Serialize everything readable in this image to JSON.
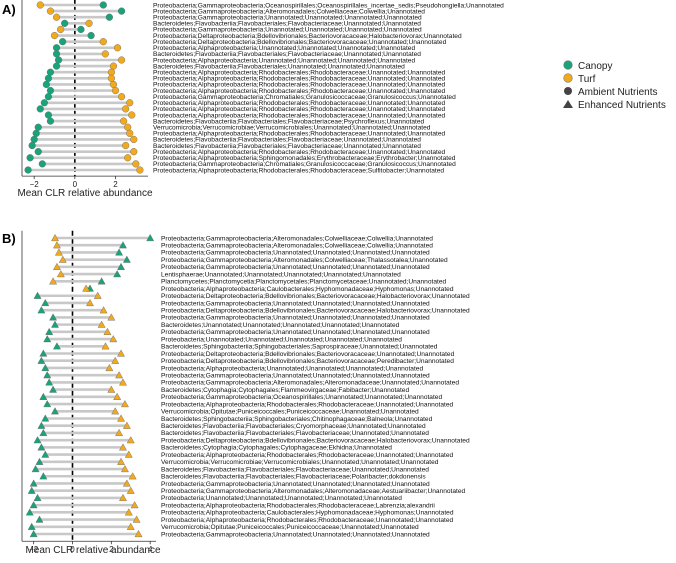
{
  "chart_data": [
    {
      "panel": "A)",
      "type": "dumbbell",
      "xlabel": "Mean CLR relative abundance",
      "xticks": [
        -2,
        0,
        2
      ],
      "xlim": [
        -2.6,
        3.6
      ],
      "reference_line_x": 0,
      "shape": "circle",
      "categories": [
        "Proteobacteria;Gammaproteobacteria;Oceanospirillales;Oceanospirillales_incertae_sedis;Pseudohongiella;Unannotated",
        "Proteobacteria;Gammaproteobacteria;Alteromonadales;Colwelliaceae;Colwellia;Unannotated",
        "Proteobacteria;Gammaproteobacteria;Unannotated;Unannotated;Unannotated;Unannotated",
        "Bacteroidetes;Flavobacteriia;Flavobacteriales;Flavobacteriaceae;Unannotated;Unannotated",
        "Proteobacteria;Gammaproteobacteria;Unannotated;Unannotated;Unannotated;Unannotated",
        "Proteobacteria;Deltaproteobacteria;Bdellovibrionales;Bacteriovoracaceae;Halobacteriovorax;Unannotated",
        "Proteobacteria;Deltaproteobacteria;Bdellovibrionales;Bacteriovoracaceae;Unannotated;Unannotated",
        "Proteobacteria;Alphaproteobacteria;Unannotated;Unannotated;Unannotated;Unannotated",
        "Bacteroidetes;Flavobacteriia;Flavobacteriales;Flavobacteriaceae;Unannotated;Unannotated",
        "Proteobacteria;Alphaproteobacteria;Unannotated;Unannotated;Unannotated;Unannotated",
        "Bacteroidetes;Flavobacteriia;Flavobacteriales;Unannotated;Unannotated;Unannotated",
        "Proteobacteria;Alphaproteobacteria;Rhodobacterales;Rhodobacteraceae;Unannotated;Unannotated",
        "Proteobacteria;Alphaproteobacteria;Rhodobacterales;Rhodobacteraceae;Unannotated;Unannotated",
        "Proteobacteria;Alphaproteobacteria;Rhodobacterales;Rhodobacteraceae;Unannotated;Unannotated",
        "Proteobacteria;Alphaproteobacteria;Rhodobacterales;Rhodobacteraceae;Unannotated;Unannotated",
        "Proteobacteria;Gammaproteobacteria;Chromatiales;Granulosicoccaceae;Granulosicoccus;Unannotated",
        "Proteobacteria;Alphaproteobacteria;Rhodobacterales;Rhodobacteraceae;Unannotated;Unannotated",
        "Proteobacteria;Alphaproteobacteria;Rhodobacterales;Rhodobacteraceae;Unannotated;Unannotated",
        "Proteobacteria;Alphaproteobacteria;Rhodobacterales;Rhodobacteraceae;Unannotated;Unannotated",
        "Bacteroidetes;Flavobacteriia;Flavobacteriales;Flavobacteriaceae;Psychroflexus;Unannotated",
        "Verrucomicrobia;Verrucomicrobiae;Verrucomicrobiales;Unannotated;Unannotated;Unannotated",
        "Proteobacteria;Alphaproteobacteria;Rhodobacterales;Rhodobacteraceae;Unannotated;Unannotated",
        "Bacteroidetes;Flavobacteriia;Flavobacteriales;Flavobacteriaceae;Unannotated;Unannotated",
        "Bacteroidetes;Flavobacteriia;Flavobacteriales;Flavobacteriaceae;Unannotated;Unannotated",
        "Proteobacteria;Alphaproteobacteria;Rhodobacterales;Rhodobacteraceae;Unannotated;Unannotated",
        "Proteobacteria;Alphaproteobacteria;Sphingomonadales;Erythrobacteraceae;Erythrobacter;Unannotated",
        "Proteobacteria;Gammaproteobacteria;Chromatiales;Granulosicoccaceae;Granulosicoccus;Unannotated",
        "Proteobacteria;Alphaproteobacteria;Rhodobacterales;Rhodobacteraceae;Sulfitobacter;Unannotated"
      ],
      "series": [
        {
          "name": "Canopy",
          "values": [
            1.4,
            2.3,
            1.7,
            -0.5,
            0.3,
            0.8,
            -0.6,
            -0.9,
            -0.9,
            -0.8,
            -0.9,
            -1.2,
            -1.3,
            -1.4,
            -1.2,
            -1.3,
            -1.5,
            -1.7,
            -1.3,
            -1.2,
            -1.8,
            -1.9,
            -2.0,
            -2.1,
            -1.8,
            -2.2,
            -1.6,
            -2.3
          ]
        },
        {
          "name": "Turf",
          "values": [
            -1.7,
            -1.2,
            -0.9,
            0.7,
            -0.7,
            -1.0,
            1.4,
            2.1,
            1.5,
            2.3,
            1.9,
            1.8,
            1.8,
            1.9,
            2.0,
            2.3,
            2.7,
            2.5,
            2.8,
            2.4,
            2.6,
            2.7,
            2.9,
            2.5,
            2.9,
            2.6,
            3.0,
            3.2
          ]
        }
      ]
    },
    {
      "panel": "B)",
      "type": "dumbbell",
      "xlabel": "Mean CLR relative abundance",
      "xticks": [
        -2,
        0,
        2,
        4
      ],
      "xlim": [
        -2.6,
        4.3
      ],
      "reference_line_x": 0,
      "shape": "triangle",
      "categories": [
        "Proteobacteria;Gammaproteobacteria;Alteromonadales;Colwelliaceae;Colwellia;Unannotated",
        "Proteobacteria;Gammaproteobacteria;Alteromonadales;Colwelliaceae;Colwellia;Unannotated",
        "Proteobacteria;Gammaproteobacteria;Unannotated;Unannotated;Unannotated;Unannotated",
        "Proteobacteria;Gammaproteobacteria;Alteromonadales;Colwelliaceae;Thalassotalea;Unannotated",
        "Proteobacteria;Gammaproteobacteria;Unannotated;Unannotated;Unannotated;Unannotated",
        "Lentisphaerae;Unannotated;Unannotated;Unannotated;Unannotated;Unannotated",
        "Planctomycetes;Planctomycetia;Planctomycetales;Planctomycetaceae;Unannotated;Unannotated",
        "Proteobacteria;Alphaproteobacteria;Caulobacterales;Hyphomonadaceae;Hyphomonas;Unannotated",
        "Proteobacteria;Deltaproteobacteria;Bdellovibrionales;Bacteriovoracaceae;Halobacteriovorax;Unannotated",
        "Proteobacteria;Gammaproteobacteria;Unannotated;Unannotated;Unannotated;Unannotated",
        "Proteobacteria;Deltaproteobacteria;Bdellovibrionales;Bacteriovoracaceae;Halobacteriovorax;Unannotated",
        "Proteobacteria;Gammaproteobacteria;Unannotated;Unannotated;Unannotated;Unannotated",
        "Bacteroidetes;Unannotated;Unannotated;Unannotated;Unannotated;Unannotated",
        "Proteobacteria;Gammaproteobacteria;Unannotated;Unannotated;Unannotated;Unannotated",
        "Proteobacteria;Unannotated;Unannotated;Unannotated;Unannotated;Unannotated",
        "Bacteroidetes;Sphingobacteriia;Sphingobacteriales;Saprospiraceae;Unannotated;Unannotated",
        "Proteobacteria;Deltaproteobacteria;Bdellovibrionales;Bacteriovoracaceae;Unannotated;Unannotated",
        "Proteobacteria;Deltaproteobacteria;Bdellovibrionales;Bacteriovoracaceae;Peredibacter;Unannotated",
        "Proteobacteria;Alphaproteobacteria;Unannotated;Unannotated;Unannotated;Unannotated",
        "Proteobacteria;Gammaproteobacteria;Unannotated;Unannotated;Unannotated;Unannotated",
        "Proteobacteria;Gammaproteobacteria;Alteromonadales;Alteromonadaceae;Unannotated;Unannotated",
        "Bacteroidetes;Cytophagia;Cytophagales;Flammeovirgaceae;Fabibacter;Unannotated",
        "Proteobacteria;Gammaproteobacteria;Oceanospirillales;Unannotated;Unannotated;Unannotated",
        "Proteobacteria;Alphaproteobacteria;Rhodobacterales;Rhodobacteraceae;Unannotated;Unannotated",
        "Verrucomicrobia;Opitutae;Puniceicoccales;Puniceicoccaceae;Unannotated;Unannotated",
        "Bacteroidetes;Sphingobacteriia;Sphingobacteriales;Chitinophagaceae;Balneola;Unannotated",
        "Bacteroidetes;Flavobacteriia;Flavobacteriales;Cryomorphaceae;Unannotated;Unannotated",
        "Bacteroidetes;Flavobacteriia;Flavobacteriales;Flavobacteriaceae;Unannotated;Unannotated",
        "Proteobacteria;Deltaproteobacteria;Bdellovibrionales;Bacteriovoracaceae;Halobacteriovorax;Unannotated",
        "Bacteroidetes;Cytophagia;Cytophagales;Cytophagaceae;Ekhidna;Unannotated",
        "Proteobacteria;Alphaproteobacteria;Rhodobacterales;Rhodobacteraceae;Unannotated;Unannotated",
        "Verrucomicrobia;Verrucomicrobiae;Verrucomicrobiales;Unannotated;Unannotated;Unannotated",
        "Bacteroidetes;Flavobacteriia;Flavobacteriales;Flavobacteriaceae;Unannotated;Unannotated",
        "Bacteroidetes;Flavobacteriia;Flavobacteriales;Flavobacteriaceae;Polaribacter;dokdonensis",
        "Proteobacteria;Gammaproteobacteria;Unannotated;Unannotated;Unannotated;Unannotated",
        "Proteobacteria;Gammaproteobacteria;Alteromonadales;Alteromonadaceae;Aestuariibacter;Unannotated",
        "Proteobacteria;Unannotated;Unannotated;Unannotated;Unannotated;Unannotated",
        "Proteobacteria;Alphaproteobacteria;Rhodobacterales;Rhodobacteraceae;Labrenzia;alexandrii",
        "Proteobacteria;Alphaproteobacteria;Caulobacterales;Hyphomonadaceae;Hyphomonas;Unannotated",
        "Proteobacteria;Alphaproteobacteria;Rhodobacterales;Rhodobacteraceae;Unannotated;Unannotated",
        "Verrucomicrobia;Opitutae;Puniceicoccales;Puniceicoccaceae;Unannotated;Unannotated",
        "Proteobacteria;Gammaproteobacteria;Unannotated;Unannotated;Unannotated;Unannotated"
      ],
      "series": [
        {
          "name": "Canopy",
          "values": [
            4.0,
            2.6,
            2.4,
            2.8,
            2.5,
            2.3,
            1.5,
            0.9,
            -1.8,
            -1.4,
            -1.6,
            -1.0,
            -0.9,
            -1.2,
            -1.3,
            -0.8,
            -1.5,
            -1.6,
            -1.4,
            -1.3,
            -1.2,
            -1.0,
            -1.5,
            -1.3,
            -0.9,
            -1.4,
            -1.6,
            -1.5,
            -1.8,
            -1.6,
            -1.4,
            -1.7,
            -1.9,
            -1.5,
            -2.0,
            -2.1,
            -1.8,
            -2.0,
            -2.2,
            -1.7,
            -2.1,
            -2.0
          ]
        },
        {
          "name": "Turf",
          "values": [
            -0.9,
            -0.8,
            -0.7,
            -0.5,
            -0.8,
            -0.6,
            -1.0,
            0.7,
            1.3,
            0.9,
            1.6,
            2.0,
            1.5,
            1.8,
            2.1,
            1.7,
            2.5,
            2.2,
            1.9,
            2.4,
            2.6,
            2.0,
            2.3,
            2.7,
            2.2,
            2.5,
            2.8,
            2.4,
            3.0,
            2.6,
            2.9,
            2.5,
            2.7,
            3.1,
            2.8,
            3.0,
            2.6,
            3.2,
            2.9,
            3.3,
            3.0,
            3.4
          ]
        }
      ]
    }
  ],
  "legend": {
    "colour_items": [
      {
        "label": "Canopy",
        "color": "#1aa37a"
      },
      {
        "label": "Turf",
        "color": "#f2a91d"
      }
    ],
    "shape_items": [
      {
        "label": "Ambient Nutrients",
        "shape": "circle"
      },
      {
        "label": "Enhanced Nutrients",
        "shape": "triangle"
      }
    ]
  },
  "colors": {
    "canopy": "#1aa37a",
    "turf": "#f2a91d",
    "segment": "#c8c8c8",
    "marker_outline": "#777777"
  }
}
